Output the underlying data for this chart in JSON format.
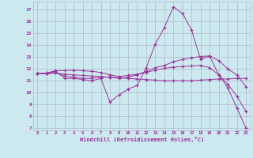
{
  "background_color": "#cde9f0",
  "grid_color": "#b0b8cc",
  "line_color": "#993399",
  "xlabel": "Windchill (Refroidissement éolien,°C)",
  "xlim": [
    -0.5,
    23.5
  ],
  "ylim": [
    6.8,
    17.7
  ],
  "yticks": [
    7,
    8,
    9,
    10,
    11,
    12,
    13,
    14,
    15,
    16,
    17
  ],
  "xticks": [
    0,
    1,
    2,
    3,
    4,
    5,
    6,
    7,
    8,
    9,
    10,
    11,
    12,
    13,
    14,
    15,
    16,
    17,
    18,
    19,
    20,
    21,
    22,
    23
  ],
  "series": [
    {
      "x": [
        0,
        1,
        2,
        3,
        4,
        5,
        6,
        7,
        8,
        9,
        10,
        11,
        12,
        13,
        14,
        15,
        16,
        17,
        18,
        19,
        20,
        21,
        22,
        23
      ],
      "y": [
        11.6,
        11.6,
        11.8,
        11.2,
        11.2,
        11.1,
        11.0,
        11.2,
        9.2,
        9.8,
        10.3,
        10.6,
        12.1,
        14.1,
        15.5,
        17.25,
        16.7,
        15.3,
        12.8,
        13.1,
        11.5,
        10.4,
        8.7,
        7.0
      ]
    },
    {
      "x": [
        0,
        1,
        2,
        3,
        4,
        5,
        6,
        7,
        8,
        9,
        10,
        11,
        12,
        13,
        14,
        15,
        16,
        17,
        18,
        19,
        20,
        21,
        22,
        23
      ],
      "y": [
        11.6,
        11.6,
        11.7,
        11.4,
        11.3,
        11.2,
        11.2,
        11.3,
        11.3,
        11.2,
        11.3,
        11.5,
        11.8,
        12.1,
        12.3,
        12.6,
        12.8,
        12.95,
        13.05,
        13.1,
        12.7,
        12.0,
        11.5,
        10.5
      ]
    },
    {
      "x": [
        0,
        1,
        2,
        3,
        4,
        5,
        6,
        7,
        8,
        9,
        10,
        11,
        12,
        13,
        14,
        15,
        16,
        17,
        18,
        19,
        20,
        21,
        22,
        23
      ],
      "y": [
        11.6,
        11.6,
        11.65,
        11.55,
        11.5,
        11.45,
        11.4,
        11.35,
        11.3,
        11.25,
        11.2,
        11.15,
        11.1,
        11.05,
        11.0,
        11.0,
        11.0,
        11.0,
        11.05,
        11.1,
        11.15,
        11.15,
        11.2,
        11.2
      ]
    },
    {
      "x": [
        0,
        1,
        2,
        3,
        4,
        5,
        6,
        7,
        8,
        9,
        10,
        11,
        12,
        13,
        14,
        15,
        16,
        17,
        18,
        19,
        20,
        21,
        22,
        23
      ],
      "y": [
        11.6,
        11.65,
        11.85,
        11.85,
        11.9,
        11.85,
        11.8,
        11.7,
        11.5,
        11.35,
        11.45,
        11.55,
        11.7,
        11.9,
        12.05,
        12.15,
        12.2,
        12.25,
        12.3,
        12.1,
        11.5,
        10.7,
        9.7,
        8.4
      ]
    }
  ]
}
